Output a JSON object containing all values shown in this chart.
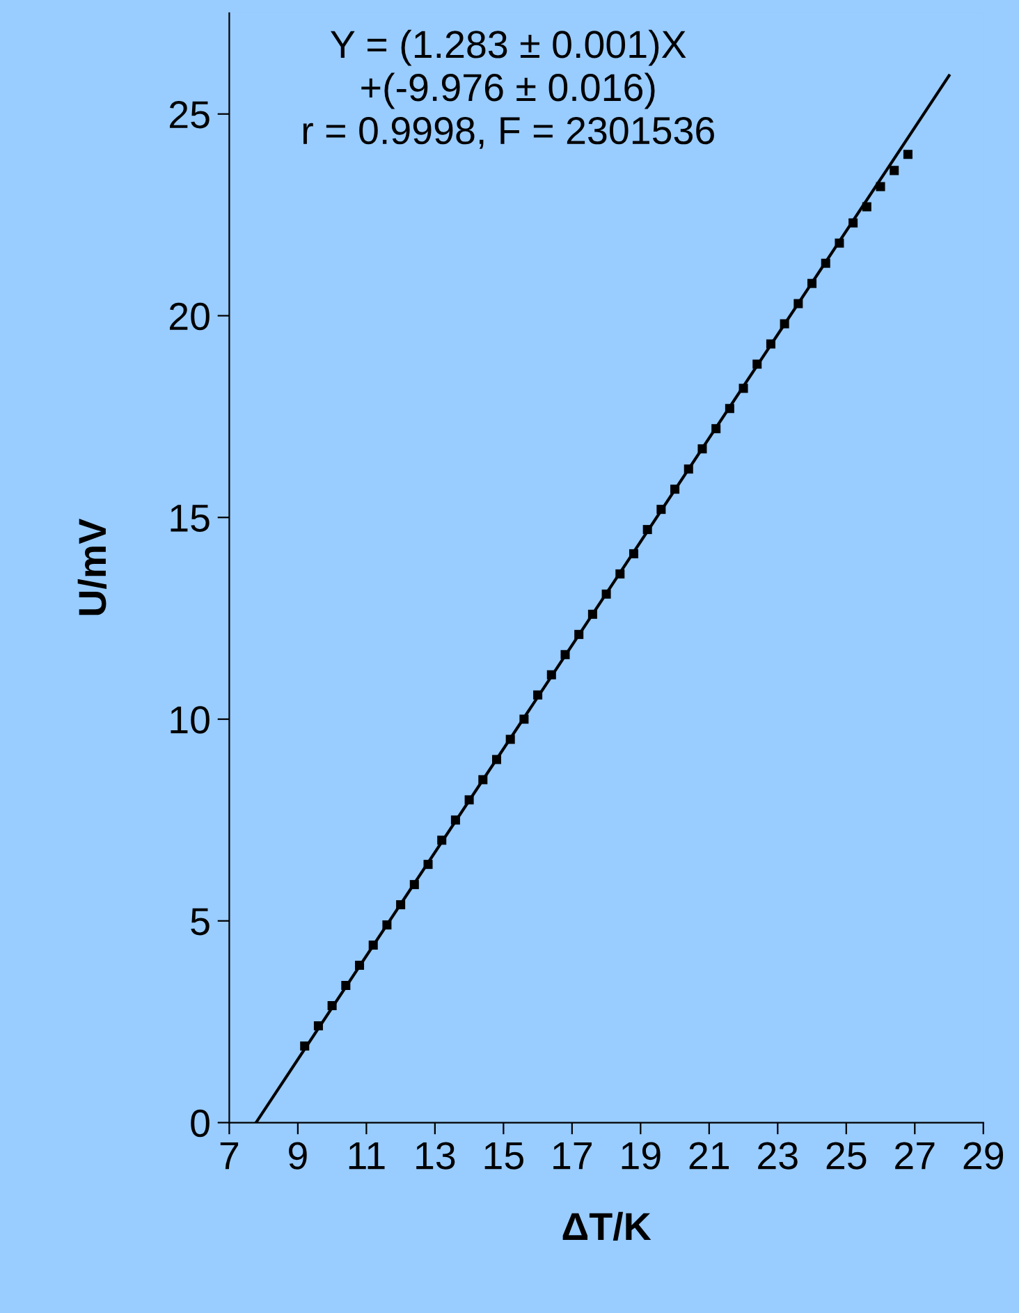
{
  "chart_data": {
    "type": "scatter",
    "xlabel": "ΔT/K",
    "ylabel": "U/mV",
    "annotations": [
      "Y = (1.283 ± 0.001)X\n+(-9.976 ± 0.016)\nr = 0.9998, F = 2301536"
    ],
    "xlim": [
      7,
      29
    ],
    "xticks": [
      7,
      9,
      11,
      13,
      15,
      17,
      19,
      21,
      23,
      25,
      27,
      29
    ],
    "ylim": [
      0,
      27.5
    ],
    "yticks": [
      0,
      5,
      10,
      15,
      20,
      25
    ],
    "grid": false,
    "legend": false,
    "series": [
      {
        "color": "#000000",
        "marker": "square",
        "x": [
          9.2,
          9.6,
          10.0,
          10.4,
          10.8,
          11.2,
          11.6,
          12.0,
          12.4,
          12.8,
          13.2,
          13.6,
          14.0,
          14.4,
          14.8,
          15.2,
          15.6,
          16.0,
          16.4,
          16.8,
          17.2,
          17.6,
          18.0,
          18.4,
          18.8,
          19.2,
          19.6,
          20.0,
          20.4,
          20.8,
          21.2,
          21.6,
          22.0,
          22.4,
          22.8,
          23.2,
          23.6,
          24.0,
          24.4,
          24.8,
          25.2,
          25.6,
          26.0,
          26.4,
          26.8
        ],
        "values": [
          1.9,
          2.4,
          2.9,
          3.4,
          3.9,
          4.4,
          4.9,
          5.4,
          5.9,
          6.4,
          7.0,
          7.5,
          8.0,
          8.5,
          9.0,
          9.5,
          10.0,
          10.6,
          11.1,
          11.6,
          12.1,
          12.6,
          13.1,
          13.6,
          14.1,
          14.7,
          15.2,
          15.7,
          16.2,
          16.7,
          17.2,
          17.7,
          18.2,
          18.8,
          19.3,
          19.8,
          20.3,
          20.8,
          21.3,
          21.8,
          22.3,
          22.7,
          23.2,
          23.6,
          24.0
        ]
      },
      {
        "type": "line",
        "color": "#000000",
        "marker": "none",
        "line_style": "solid",
        "x": [
          7.78,
          28.0
        ],
        "values": [
          0,
          25.95
        ]
      }
    ]
  }
}
